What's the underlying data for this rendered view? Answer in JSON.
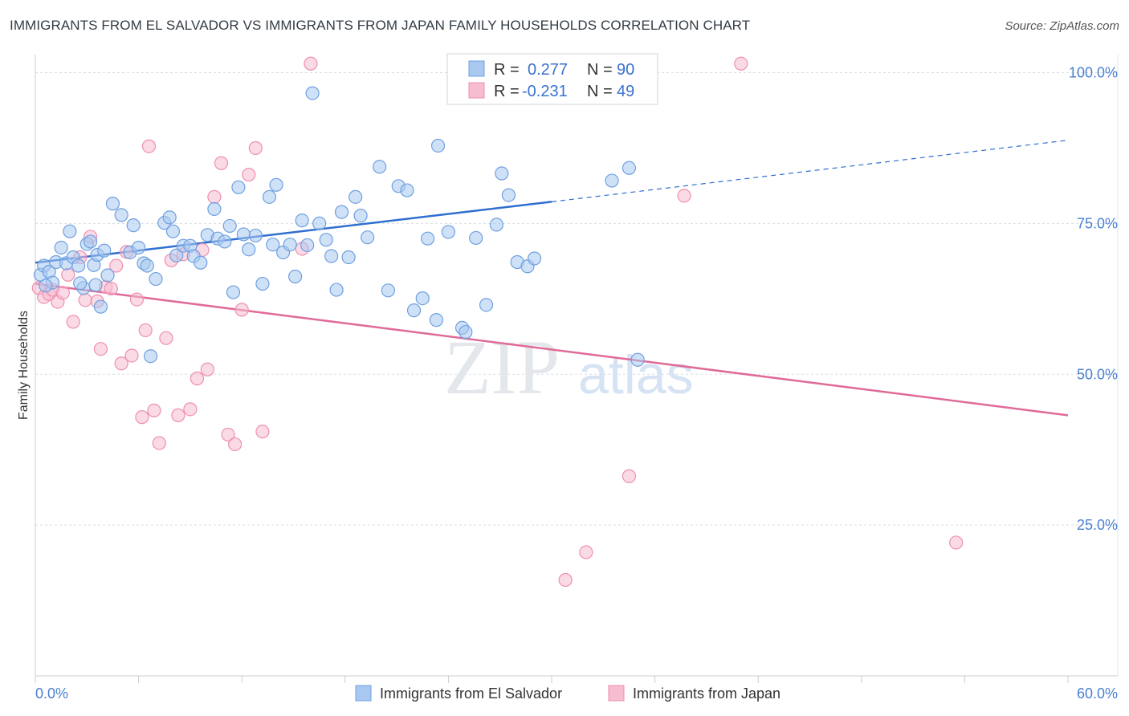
{
  "title": "IMMIGRANTS FROM EL SALVADOR VS IMMIGRANTS FROM JAPAN FAMILY HOUSEHOLDS CORRELATION CHART",
  "source": "Source: ZipAtlas.com",
  "watermark": {
    "zip": "ZIP",
    "atlas": "atlas"
  },
  "colors": {
    "blue_fill": "#a8c8f0",
    "blue_stroke": "#6fa0e0",
    "blue_line": "#2f6fd0",
    "pink_fill": "#f6bcd0",
    "pink_stroke": "#ee8fb0",
    "pink_line": "#e06a98",
    "tick_text": "#4a7fd1",
    "grid": "#d8dde3"
  },
  "legend": {
    "rows": [
      {
        "r_label": "R =",
        "r_value": "0.277",
        "n_label": "N =",
        "n_value": "90"
      },
      {
        "r_label": "R =",
        "r_value": "-0.231",
        "n_label": "N =",
        "n_value": "49"
      }
    ]
  },
  "bottom_legend": {
    "items": [
      "Immigrants from El Salvador",
      "Immigrants from Japan"
    ]
  },
  "chart_data": {
    "type": "scatter",
    "xlabel": "",
    "ylabel": "Family Households",
    "xlim": [
      0,
      60
    ],
    "ylim": [
      0,
      103
    ],
    "x_tick_labels": [
      "0.0%",
      "60.0%"
    ],
    "y_tick_labels": [
      "100.0%",
      "75.0%",
      "50.0%",
      "25.0%"
    ],
    "y_ticks": [
      100,
      75,
      50,
      25
    ],
    "series": [
      {
        "name": "Immigrants from El Salvador",
        "trend": {
          "x0": 0,
          "y0": 68.5,
          "x1": 30,
          "y1": 78.6,
          "dash_to_x": 60,
          "dash_to_y": 88.8
        },
        "points": [
          [
            0.3,
            66.5
          ],
          [
            0.5,
            68.0
          ],
          [
            0.8,
            67.0
          ],
          [
            1.2,
            68.6
          ],
          [
            1.5,
            71.0
          ],
          [
            1.8,
            68.4
          ],
          [
            2.0,
            73.7
          ],
          [
            2.2,
            69.4
          ],
          [
            2.5,
            68.0
          ],
          [
            2.8,
            64.3
          ],
          [
            3.0,
            71.6
          ],
          [
            3.2,
            72.0
          ],
          [
            3.4,
            68.1
          ],
          [
            3.6,
            69.8
          ],
          [
            3.8,
            61.2
          ],
          [
            4.2,
            66.4
          ],
          [
            4.5,
            78.3
          ],
          [
            5.0,
            76.4
          ],
          [
            5.5,
            70.2
          ],
          [
            5.7,
            74.7
          ],
          [
            6.0,
            71.0
          ],
          [
            6.3,
            68.4
          ],
          [
            6.5,
            68.0
          ],
          [
            6.7,
            53.0
          ],
          [
            7.0,
            65.8
          ],
          [
            7.5,
            75.1
          ],
          [
            8.0,
            73.7
          ],
          [
            8.2,
            69.7
          ],
          [
            8.6,
            71.3
          ],
          [
            9.0,
            71.3
          ],
          [
            9.2,
            69.6
          ],
          [
            9.6,
            68.5
          ],
          [
            10.0,
            73.1
          ],
          [
            10.4,
            77.4
          ],
          [
            10.6,
            72.5
          ],
          [
            11.0,
            72.0
          ],
          [
            11.3,
            74.6
          ],
          [
            11.5,
            63.6
          ],
          [
            11.8,
            81.0
          ],
          [
            12.1,
            73.2
          ],
          [
            12.4,
            70.7
          ],
          [
            12.8,
            73.0
          ],
          [
            13.2,
            65.0
          ],
          [
            13.6,
            79.4
          ],
          [
            14.0,
            81.4
          ],
          [
            14.4,
            70.2
          ],
          [
            14.8,
            71.5
          ],
          [
            15.1,
            66.2
          ],
          [
            15.5,
            75.5
          ],
          [
            15.8,
            71.4
          ],
          [
            16.1,
            96.6
          ],
          [
            16.5,
            75.0
          ],
          [
            16.9,
            72.3
          ],
          [
            17.2,
            69.6
          ],
          [
            17.5,
            64.0
          ],
          [
            17.8,
            76.9
          ],
          [
            18.2,
            69.4
          ],
          [
            18.6,
            79.4
          ],
          [
            18.9,
            76.3
          ],
          [
            19.3,
            72.7
          ],
          [
            20.0,
            84.4
          ],
          [
            20.5,
            63.9
          ],
          [
            21.1,
            81.2
          ],
          [
            21.6,
            80.5
          ],
          [
            22.0,
            60.6
          ],
          [
            22.5,
            62.6
          ],
          [
            22.8,
            72.5
          ],
          [
            23.3,
            59.0
          ],
          [
            23.4,
            87.9
          ],
          [
            24.0,
            73.6
          ],
          [
            24.8,
            57.7
          ],
          [
            25.6,
            72.6
          ],
          [
            26.2,
            61.5
          ],
          [
            26.8,
            74.8
          ],
          [
            27.1,
            83.3
          ],
          [
            27.5,
            79.7
          ],
          [
            28.0,
            68.6
          ],
          [
            28.6,
            67.9
          ],
          [
            29.0,
            69.2
          ],
          [
            33.5,
            82.1
          ],
          [
            34.5,
            84.2
          ],
          [
            25.0,
            57.0
          ],
          [
            35.0,
            52.4
          ],
          [
            4.0,
            70.5
          ],
          [
            2.6,
            65.1
          ],
          [
            1.0,
            65.2
          ],
          [
            0.6,
            64.7
          ],
          [
            3.5,
            64.8
          ],
          [
            7.8,
            76.0
          ],
          [
            13.8,
            71.5
          ]
        ]
      },
      {
        "name": "Immigrants from Japan",
        "trend": {
          "x0": 0,
          "y0": 65.0,
          "x1": 60,
          "y1": 43.2
        },
        "points": [
          [
            0.2,
            64.3
          ],
          [
            0.5,
            62.8
          ],
          [
            0.8,
            63.3
          ],
          [
            1.0,
            64.0
          ],
          [
            1.3,
            62.0
          ],
          [
            1.6,
            63.5
          ],
          [
            1.9,
            66.5
          ],
          [
            2.2,
            58.7
          ],
          [
            2.6,
            69.4
          ],
          [
            2.9,
            62.3
          ],
          [
            3.2,
            72.8
          ],
          [
            3.6,
            62.1
          ],
          [
            3.8,
            54.2
          ],
          [
            4.1,
            64.5
          ],
          [
            4.4,
            64.2
          ],
          [
            4.7,
            68.0
          ],
          [
            5.0,
            51.8
          ],
          [
            5.3,
            70.3
          ],
          [
            5.6,
            53.1
          ],
          [
            5.9,
            62.4
          ],
          [
            6.2,
            42.9
          ],
          [
            6.4,
            57.3
          ],
          [
            6.6,
            87.8
          ],
          [
            6.9,
            44.0
          ],
          [
            7.2,
            38.6
          ],
          [
            7.6,
            56.0
          ],
          [
            7.9,
            68.9
          ],
          [
            8.3,
            43.2
          ],
          [
            8.6,
            69.9
          ],
          [
            9.0,
            44.2
          ],
          [
            9.4,
            49.3
          ],
          [
            9.7,
            70.6
          ],
          [
            10.0,
            50.8
          ],
          [
            10.4,
            79.4
          ],
          [
            10.8,
            85.0
          ],
          [
            11.2,
            40.0
          ],
          [
            11.6,
            38.4
          ],
          [
            12.0,
            60.7
          ],
          [
            12.4,
            83.1
          ],
          [
            12.8,
            87.5
          ],
          [
            13.2,
            40.5
          ],
          [
            15.5,
            70.8
          ],
          [
            16.0,
            101.5
          ],
          [
            30.8,
            15.9
          ],
          [
            32.0,
            20.5
          ],
          [
            34.5,
            33.1
          ],
          [
            37.7,
            79.6
          ],
          [
            41.0,
            101.5
          ],
          [
            53.5,
            22.1
          ]
        ]
      }
    ]
  }
}
